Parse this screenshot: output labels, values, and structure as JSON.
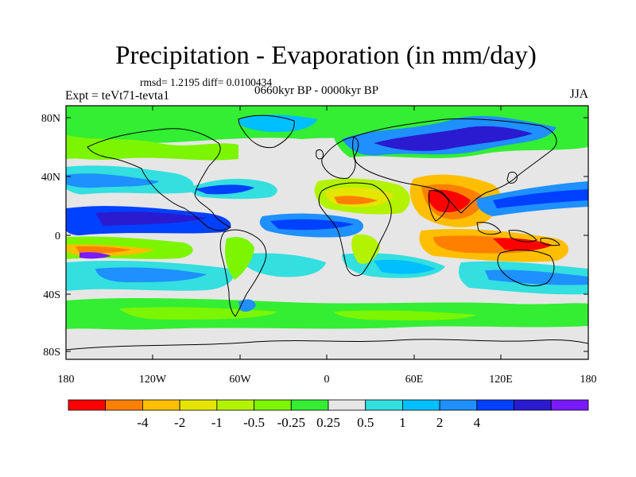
{
  "title": "Precipitation - Evaporation (in mm/day)",
  "stats": "rmsd= 1.2195 diff= 0.0100434",
  "period": "0660kyr BP - 0000kyr BP",
  "experiment": "Expt = teVt71-tevta1",
  "season": "JJA",
  "map": {
    "lat_ticks": [
      "80N",
      "40N",
      "0",
      "40S",
      "80S"
    ],
    "lon_ticks": [
      "180",
      "120W",
      "60W",
      "0",
      "60E",
      "120E",
      "180"
    ]
  },
  "colorbar": {
    "colors": [
      "#ff0000",
      "#ff8000",
      "#ffbf00",
      "#e5e500",
      "#b3f200",
      "#7cf500",
      "#33ee33",
      "#e6e6e6",
      "#33dfdf",
      "#00bfff",
      "#1e90ff",
      "#0040ff",
      "#2a1ad0",
      "#7a1aff"
    ],
    "labels": [
      "-4",
      "-2",
      "-1",
      "-0.5",
      "-0.25",
      "0.25",
      "0.5",
      "1",
      "2",
      "4"
    ]
  }
}
